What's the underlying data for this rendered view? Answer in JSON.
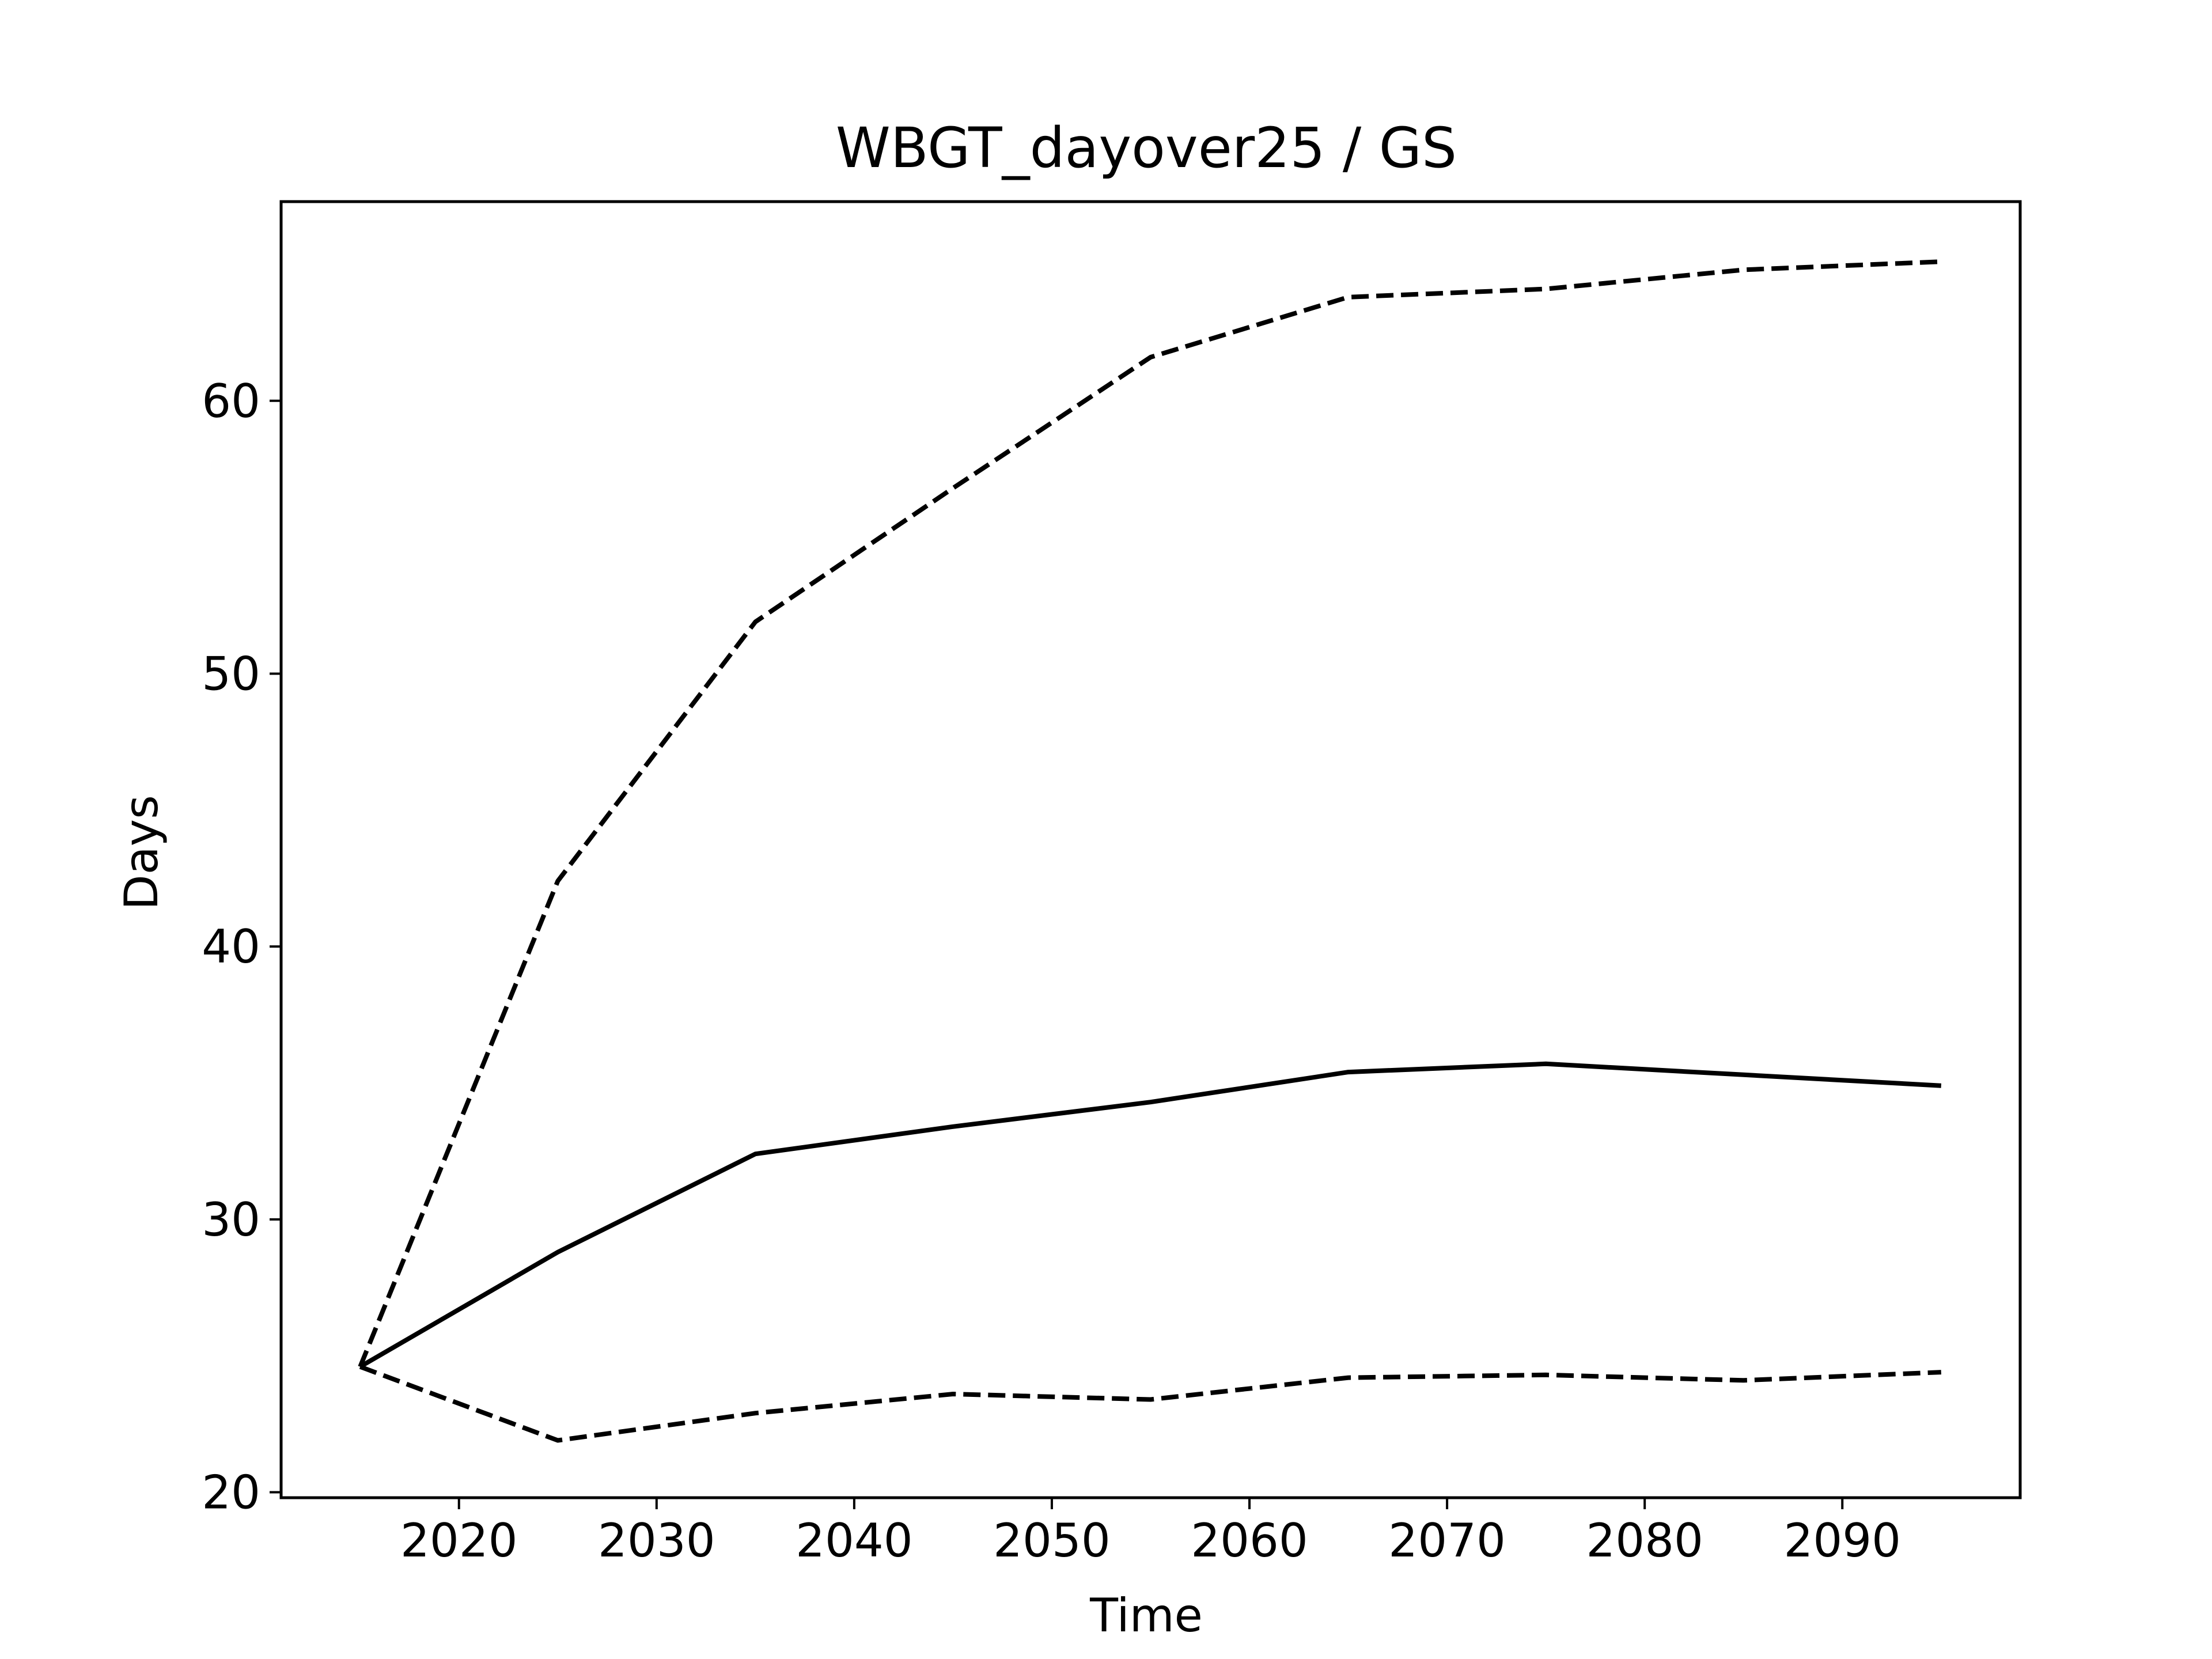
{
  "chart_data": {
    "type": "line",
    "title": "WBGT_dayover25 / GS",
    "xlabel": "Time",
    "ylabel": "Days",
    "xlim": [
      2011,
      2099
    ],
    "ylim": [
      19.8,
      67.3
    ],
    "xticks": [
      2020,
      2030,
      2040,
      2050,
      2060,
      2070,
      2080,
      2090
    ],
    "yticks": [
      20,
      30,
      40,
      50,
      60
    ],
    "grid": false,
    "legend": "none",
    "series": [
      {
        "style": "dashed",
        "color": "#000000",
        "x": [
          2015,
          2025,
          2035,
          2045,
          2055,
          2065,
          2075,
          2085,
          2095
        ],
        "y": [
          24.6,
          42.4,
          51.9,
          56.8,
          61.6,
          63.8,
          64.1,
          64.8,
          65.1
        ]
      },
      {
        "style": "solid",
        "color": "#000000",
        "x": [
          2015,
          2025,
          2035,
          2045,
          2055,
          2065,
          2075,
          2085,
          2095
        ],
        "y": [
          24.6,
          28.8,
          32.4,
          33.4,
          34.3,
          35.4,
          35.7,
          35.3,
          34.9
        ]
      },
      {
        "style": "dashed",
        "color": "#000000",
        "x": [
          2015,
          2025,
          2035,
          2045,
          2055,
          2065,
          2075,
          2085,
          2095
        ],
        "y": [
          24.6,
          21.9,
          22.9,
          23.6,
          23.4,
          24.2,
          24.3,
          24.1,
          24.4
        ]
      }
    ]
  }
}
